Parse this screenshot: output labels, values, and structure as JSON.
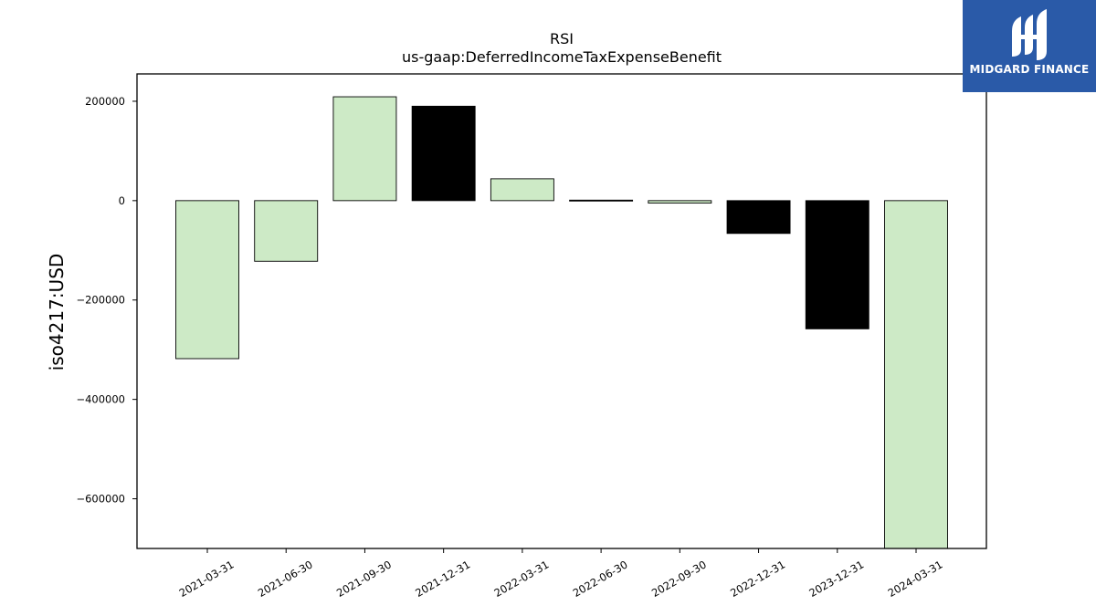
{
  "brand": {
    "name": "MIDGARD FINANCE",
    "logo_icon": "midgard-logo-icon",
    "background_color": "#2a5aa8"
  },
  "chart_data": {
    "type": "bar",
    "title": "RSI",
    "subtitle": "us-gaap:DeferredIncomeTaxExpenseBenefit",
    "xlabel": "",
    "ylabel": "iso4217:USD",
    "ylim": [
      -700000,
      255000
    ],
    "yticks": [
      200000,
      0,
      -200000,
      -400000,
      -600000
    ],
    "ytick_labels": [
      "200000",
      "0",
      "−200000",
      "−400000",
      "−600000"
    ],
    "grid": false,
    "categories": [
      "2021-03-31",
      "2021-06-30",
      "2021-09-30",
      "2021-12-31",
      "2022-03-31",
      "2022-06-30",
      "2022-09-30",
      "2022-12-31",
      "2023-12-31",
      "2024-03-31"
    ],
    "values": [
      -318000,
      -122000,
      209000,
      190000,
      44000,
      1000,
      -5000,
      -66000,
      -258000,
      -700000
    ],
    "colors": [
      "#cdeac6",
      "#cdeac6",
      "#cdeac6",
      "#000000",
      "#cdeac6",
      "#000000",
      "#cdeac6",
      "#000000",
      "#000000",
      "#cdeac6"
    ]
  }
}
